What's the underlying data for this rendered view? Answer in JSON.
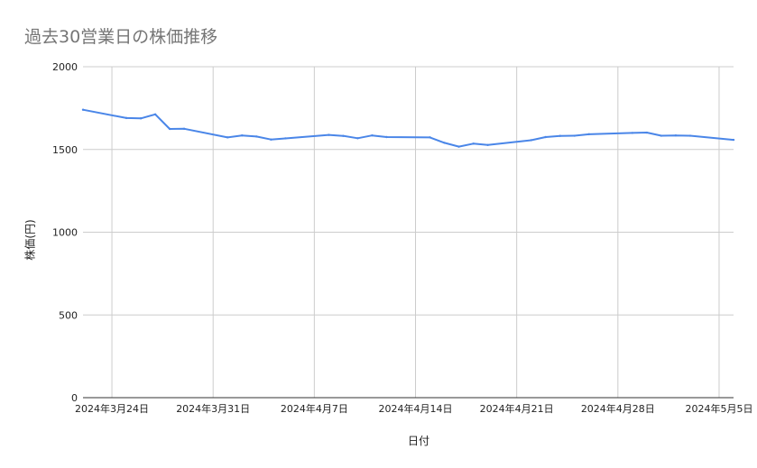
{
  "chart_data": {
    "type": "line",
    "title": "過去30営業日の株価推移",
    "xlabel": "日付",
    "ylabel": "株価(円)",
    "ylim": [
      0,
      2000
    ],
    "yticks": [
      0,
      500,
      1000,
      1500,
      2000
    ],
    "xlim": [
      "2024-03-22",
      "2024-05-06"
    ],
    "xticks": [
      {
        "date": "2024-03-24",
        "label": "2024年3月24日"
      },
      {
        "date": "2024-03-31",
        "label": "2024年3月31日"
      },
      {
        "date": "2024-04-07",
        "label": "2024年4月7日"
      },
      {
        "date": "2024-04-14",
        "label": "2024年4月14日"
      },
      {
        "date": "2024-04-21",
        "label": "2024年4月21日"
      },
      {
        "date": "2024-04-28",
        "label": "2024年4月28日"
      },
      {
        "date": "2024-05-05",
        "label": "2024年5月5日"
      }
    ],
    "grid": true,
    "line_color": "#4a86e8",
    "series": [
      {
        "x": [
          "2024-03-22",
          "2024-03-25",
          "2024-03-26",
          "2024-03-27",
          "2024-03-28",
          "2024-03-29",
          "2024-04-01",
          "2024-04-02",
          "2024-04-03",
          "2024-04-04",
          "2024-04-05",
          "2024-04-08",
          "2024-04-09",
          "2024-04-10",
          "2024-04-11",
          "2024-04-12",
          "2024-04-15",
          "2024-04-16",
          "2024-04-17",
          "2024-04-18",
          "2024-04-19",
          "2024-04-22",
          "2024-04-23",
          "2024-04-24",
          "2024-04-25",
          "2024-04-26",
          "2024-04-29",
          "2024-04-30",
          "2024-05-01",
          "2024-05-02",
          "2024-05-03",
          "2024-05-06"
        ],
        "values": [
          1740,
          1690,
          1688,
          1712,
          1624,
          1625,
          1573,
          1585,
          1578,
          1560,
          1567,
          1588,
          1582,
          1568,
          1585,
          1575,
          1573,
          1540,
          1517,
          1535,
          1527,
          1556,
          1575,
          1582,
          1583,
          1592,
          1600,
          1602,
          1583,
          1585,
          1583,
          1558
        ]
      }
    ]
  }
}
